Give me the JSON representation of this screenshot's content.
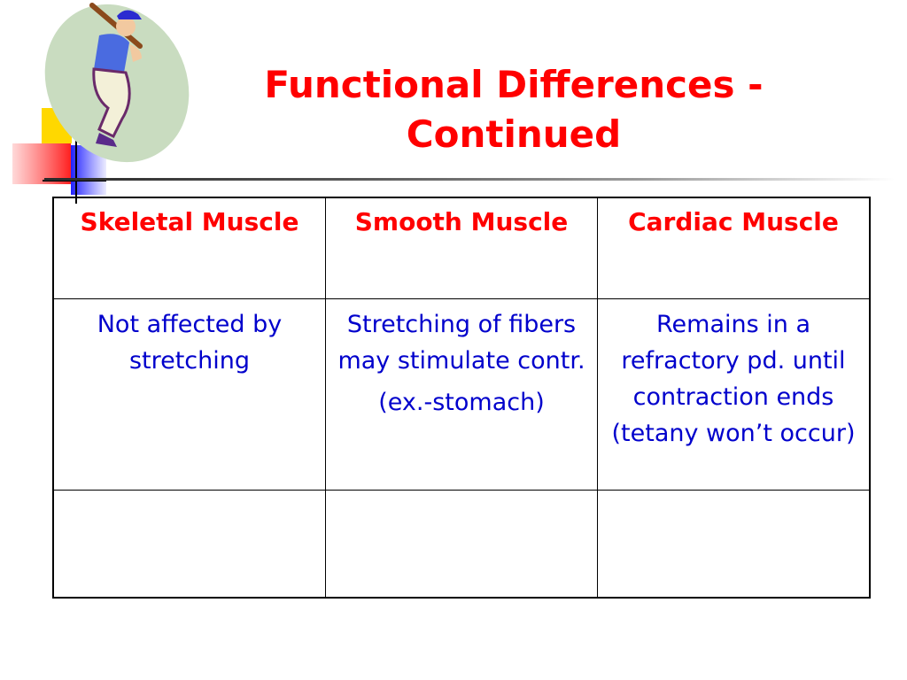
{
  "colors": {
    "title": "#ff0000",
    "header_text": "#ff0000",
    "body_text": "#0000cc",
    "border": "#000000"
  },
  "title": {
    "line1": "Functional Differences -",
    "line2": "Continued"
  },
  "table": {
    "headers": [
      "Skeletal Muscle",
      "Smooth Muscle",
      "Cardiac Muscle"
    ],
    "rows": [
      {
        "skeletal": [
          "Not affected by stretching"
        ],
        "smooth": [
          "Stretching of fibers may stimulate contr.",
          "(ex.-stomach)"
        ],
        "cardiac": [
          "Remains in a refractory pd. until contraction ends (tetany won’t occur)"
        ]
      },
      {
        "skeletal": [
          ""
        ],
        "smooth": [
          ""
        ],
        "cardiac": [
          ""
        ]
      }
    ]
  }
}
